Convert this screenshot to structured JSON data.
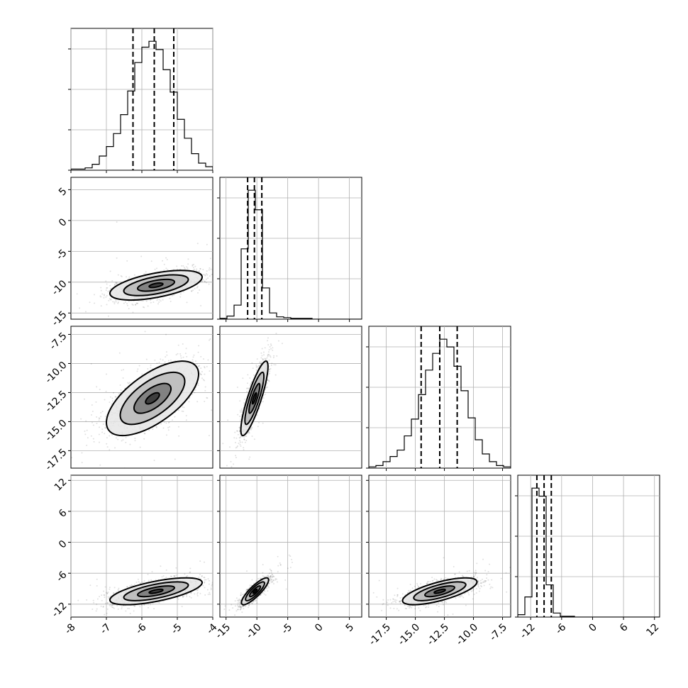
{
  "chart_data": [
    {
      "type": "histogram",
      "panel": "1-1",
      "parameter": 1,
      "xlim": [
        -8,
        -4
      ],
      "x_ticks": [
        "-8",
        "-7",
        "-6",
        "-5",
        "-4"
      ],
      "x_tick_labels_shown": false,
      "grid": true,
      "quantiles": [
        -6.25,
        -5.65,
        -5.1
      ],
      "bin_edges": [
        -8.0,
        -7.8,
        -7.6,
        -7.4,
        -7.2,
        -7.0,
        -6.8,
        -6.6,
        -6.4,
        -6.2,
        -6.0,
        -5.8,
        -5.6,
        -5.4,
        -5.2,
        -5.0,
        -4.8,
        -4.6,
        -4.4,
        -4.2,
        -4.0
      ],
      "counts": [
        1,
        1,
        2,
        5,
        12,
        20,
        31,
        47,
        67,
        91,
        104,
        109,
        102,
        85,
        66,
        43,
        27,
        14,
        6,
        3
      ]
    },
    {
      "type": "scatter",
      "panel": "2-1",
      "xlim": [
        -8,
        -4
      ],
      "ylim": [
        -16,
        7
      ],
      "y_ticks": [
        "5",
        "0",
        "-5",
        "-10",
        "-15"
      ],
      "x_tick_labels_shown": false,
      "grid": true,
      "contours": true,
      "center": [
        -5.6,
        -10.5
      ],
      "spread": [
        0.65,
        1.2
      ],
      "correlation": 0.55
    },
    {
      "type": "scatter",
      "panel": "3-1",
      "xlim": [
        -8,
        -4
      ],
      "ylim": [
        -19,
        -6.8
      ],
      "y_ticks": [
        "-17.5",
        "-15.0",
        "-12.5",
        "-10.0",
        "-7.5"
      ],
      "x_tick_labels_shown": false,
      "grid": true,
      "contours": true,
      "center": [
        -5.7,
        -13.0
      ],
      "spread": [
        0.65,
        1.6
      ],
      "correlation": 0.65
    },
    {
      "type": "scatter",
      "panel": "4-1",
      "xlim": [
        -8,
        -4
      ],
      "ylim": [
        -14.5,
        13
      ],
      "x_ticks": [
        "-8",
        "-7",
        "-6",
        "-5",
        "-4"
      ],
      "y_ticks": [
        "12",
        "6",
        "0",
        "-6",
        "-12"
      ],
      "grid": true,
      "contours": true,
      "center": [
        -5.6,
        -9.5
      ],
      "spread": [
        0.65,
        1.3
      ],
      "correlation": 0.65
    },
    {
      "type": "histogram",
      "panel": "2-2",
      "parameter": 2,
      "xlim": [
        -16,
        7
      ],
      "x_ticks": [
        "-15",
        "-10",
        "-5",
        "0",
        "5"
      ],
      "x_tick_labels_shown": false,
      "grid": true,
      "quantiles": [
        -11.5,
        -10.4,
        -9.2
      ],
      "bin_edges": [
        -16.0,
        -14.85,
        -13.7,
        -12.55,
        -11.4,
        -10.25,
        -9.1,
        -7.95,
        -6.8,
        -5.65,
        -4.5,
        -3.35,
        -2.2,
        -1.05,
        0.1,
        1.25,
        2.4,
        3.55,
        4.7,
        5.85,
        7.0
      ],
      "counts": [
        1,
        4,
        18,
        90,
        165,
        140,
        40,
        8,
        3,
        2,
        1,
        1,
        1,
        0,
        0,
        0,
        0,
        0,
        0,
        0
      ]
    },
    {
      "type": "scatter",
      "panel": "3-2",
      "xlim": [
        -16,
        7
      ],
      "ylim": [
        -19,
        -6.8
      ],
      "y_tick_labels_shown": false,
      "x_tick_labels_shown": false,
      "grid": true,
      "contours": true,
      "center": [
        -10.4,
        -13.0
      ],
      "spread": [
        1.1,
        1.6
      ],
      "correlation": 0.85
    },
    {
      "type": "scatter",
      "panel": "4-2",
      "xlim": [
        -16,
        7
      ],
      "ylim": [
        -14.5,
        13
      ],
      "x_ticks": [
        "-15",
        "-10",
        "-5",
        "0",
        "5"
      ],
      "y_tick_labels_shown": false,
      "grid": true,
      "contours": true,
      "center": [
        -10.3,
        -9.5
      ],
      "spread": [
        1.1,
        1.3
      ],
      "correlation": 0.85
    },
    {
      "type": "histogram",
      "panel": "3-3",
      "parameter": 3,
      "xlim": [
        -19,
        -6.8
      ],
      "x_ticks": [
        "-17.5",
        "-15.0",
        "-12.5",
        "-10.0",
        "-7.5"
      ],
      "x_tick_labels_shown": false,
      "grid": true,
      "quantiles": [
        -14.5,
        -12.9,
        -11.4
      ],
      "bin_edges": [
        -19.0,
        -18.39,
        -17.78,
        -17.17,
        -16.56,
        -15.95,
        -15.34,
        -14.73,
        -14.12,
        -13.51,
        -12.9,
        -12.29,
        -11.68,
        -11.07,
        -10.46,
        -9.85,
        -9.24,
        -8.63,
        -8.02,
        -7.41,
        -6.8
      ],
      "counts": [
        1,
        2,
        5,
        9,
        14,
        25,
        38,
        57,
        76,
        89,
        100,
        94,
        79,
        60,
        39,
        22,
        11,
        5,
        2,
        1
      ]
    },
    {
      "type": "scatter",
      "panel": "4-3",
      "xlim": [
        -19,
        -6.8
      ],
      "ylim": [
        -14.5,
        13
      ],
      "x_ticks": [
        "-17.5",
        "-15.0",
        "-12.5",
        "-10.0",
        "-7.5"
      ],
      "y_tick_labels_shown": false,
      "grid": true,
      "contours": true,
      "center": [
        -12.9,
        -9.5
      ],
      "spread": [
        1.6,
        1.3
      ],
      "correlation": 0.7
    },
    {
      "type": "histogram",
      "panel": "4-4",
      "parameter": 4,
      "xlim": [
        -14.5,
        13
      ],
      "x_ticks": [
        "-12",
        "-6",
        "0",
        "6",
        "12"
      ],
      "grid": true,
      "quantiles": [
        -10.8,
        -9.4,
        -8.0
      ],
      "bin_edges": [
        -14.5,
        -13.125,
        -11.75,
        -10.375,
        -9.0,
        -7.625,
        -6.25,
        -4.875,
        -3.5,
        -2.125,
        -0.75,
        0.625,
        2.0,
        3.375,
        4.75,
        6.125,
        7.5,
        8.875,
        10.25,
        11.625,
        13.0
      ],
      "counts": [
        3,
        25,
        160,
        150,
        40,
        5,
        1,
        1,
        0,
        0,
        0,
        0,
        0,
        0,
        0,
        0,
        0,
        0,
        0,
        0
      ]
    }
  ]
}
